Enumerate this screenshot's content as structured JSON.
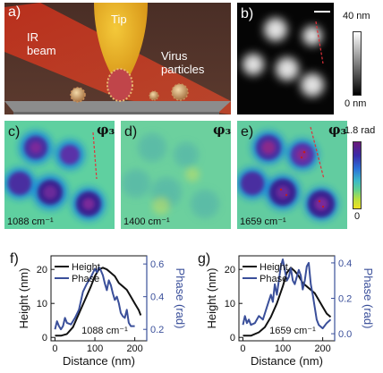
{
  "panel_a": {
    "label": "a)",
    "text_tip": "Tip",
    "text_ir_line1": "IR",
    "text_ir_line2": "beam",
    "text_virus_line1": "Virus",
    "text_virus_line2": "particles"
  },
  "panel_b": {
    "label": "b)",
    "scale_max": "40 nm",
    "scale_min": "0 nm"
  },
  "panel_c": {
    "label": "c)",
    "symbol": "φ₃",
    "wavenumber": "1088 cm⁻¹"
  },
  "panel_d": {
    "label": "d)",
    "symbol": "φ₃",
    "wavenumber": "1400 cm⁻¹"
  },
  "panel_e": {
    "label": "e)",
    "symbol": "φ₃",
    "wavenumber": "1659 cm⁻¹"
  },
  "phase_scale": {
    "max": "1.8 rad",
    "min": "0"
  },
  "colors": {
    "height_line": "#111111",
    "phase_line": "#3a4f9a",
    "phase_axis": "#3a4f9a"
  },
  "chart_data": [
    {
      "type": "line",
      "label": "f)",
      "annotation": "1088 cm⁻¹",
      "xlabel": "Distance (nm)",
      "ylabel": "Height (nm)",
      "y2label": "Phase (rad)",
      "xlim": [
        -10,
        230
      ],
      "ylim": [
        -1,
        24
      ],
      "y2lim": [
        0.13,
        0.65
      ],
      "xticks": [
        0,
        100,
        200
      ],
      "yticks": [
        0,
        10,
        20
      ],
      "y2ticks": [
        0.2,
        0.4,
        0.6
      ],
      "legend": "top-left",
      "series": [
        {
          "name": "Height",
          "axis": "left",
          "x": [
            0,
            15,
            30,
            45,
            60,
            75,
            90,
            100,
            110,
            120,
            130,
            140,
            150,
            160,
            170,
            180,
            190,
            200,
            210,
            215
          ],
          "y": [
            0.5,
            0.5,
            1,
            3,
            7,
            11,
            15,
            18,
            20,
            20.5,
            20,
            19,
            18,
            16,
            15,
            14,
            12,
            10,
            8,
            6.5
          ]
        },
        {
          "name": "Phase",
          "axis": "right",
          "x": [
            0,
            5,
            10,
            15,
            20,
            25,
            30,
            40,
            50,
            60,
            70,
            80,
            90,
            100,
            105,
            110,
            115,
            120,
            125,
            130,
            135,
            140,
            145,
            150,
            155,
            160,
            165,
            170,
            175,
            180,
            185,
            190,
            200
          ],
          "y": [
            0.2,
            0.25,
            0.22,
            0.2,
            0.22,
            0.27,
            0.24,
            0.23,
            0.27,
            0.32,
            0.43,
            0.48,
            0.52,
            0.57,
            0.55,
            0.58,
            0.56,
            0.53,
            0.48,
            0.44,
            0.5,
            0.47,
            0.42,
            0.38,
            0.4,
            0.36,
            0.3,
            0.28,
            0.27,
            0.32,
            0.24,
            0.22,
            0.22
          ]
        }
      ]
    },
    {
      "type": "line",
      "label": "g)",
      "annotation": "1659 cm⁻¹",
      "xlabel": "Distance (nm)",
      "ylabel": "Height (nm)",
      "y2label": "Phase (rad)",
      "xlim": [
        -10,
        230
      ],
      "ylim": [
        -1,
        24
      ],
      "y2lim": [
        -0.04,
        0.44
      ],
      "xticks": [
        0,
        100,
        200
      ],
      "yticks": [
        0,
        10,
        20
      ],
      "y2ticks": [
        0.0,
        0.2,
        0.4
      ],
      "legend": "top-left",
      "series": [
        {
          "name": "Height",
          "axis": "left",
          "x": [
            0,
            20,
            40,
            55,
            70,
            85,
            100,
            110,
            120,
            130,
            140,
            150,
            160,
            170,
            180,
            190,
            200,
            210,
            220
          ],
          "y": [
            0.5,
            0.5,
            1.5,
            3,
            6,
            10,
            15,
            19,
            20.5,
            19.5,
            18,
            16,
            15,
            14,
            13,
            11,
            9,
            7,
            6
          ]
        },
        {
          "name": "Phase",
          "axis": "right",
          "x": [
            0,
            5,
            10,
            15,
            20,
            30,
            40,
            50,
            60,
            70,
            75,
            80,
            85,
            90,
            95,
            100,
            105,
            110,
            115,
            120,
            125,
            130,
            135,
            140,
            145,
            150,
            155,
            160,
            165,
            170,
            175,
            180,
            185,
            190,
            200,
            210,
            220
          ],
          "y": [
            0.05,
            0.1,
            0.06,
            0.08,
            0.05,
            0.06,
            0.1,
            0.08,
            0.15,
            0.22,
            0.18,
            0.28,
            0.22,
            0.3,
            0.38,
            0.42,
            0.36,
            0.3,
            0.32,
            0.37,
            0.3,
            0.28,
            0.32,
            0.36,
            0.33,
            0.25,
            0.3,
            0.38,
            0.4,
            0.28,
            0.22,
            0.15,
            0.08,
            0.05,
            0.03,
            0.06,
            0.08
          ]
        }
      ]
    }
  ]
}
